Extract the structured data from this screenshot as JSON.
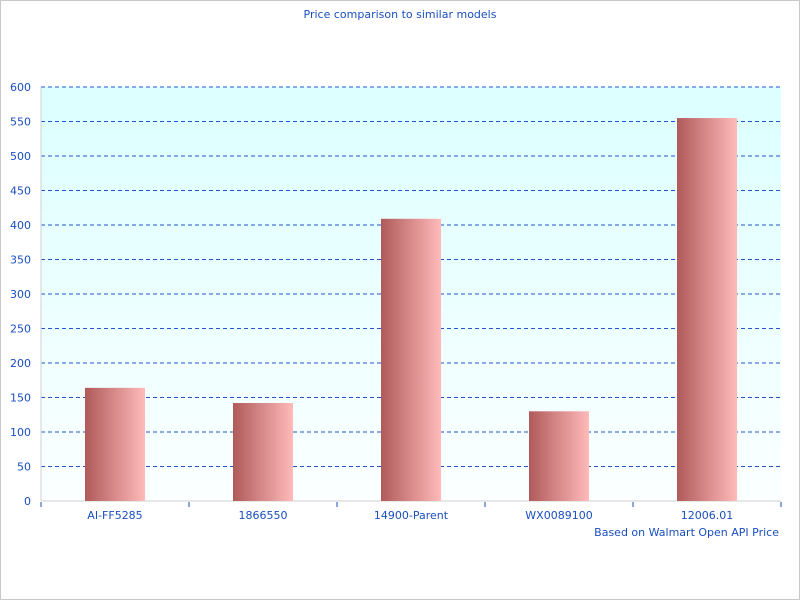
{
  "chart_data": {
    "type": "bar",
    "title": "Price comparison to similar models",
    "xlabel": "Based on Walmart Open API Price",
    "ylabel": "",
    "categories": [
      "AI-FF5285",
      "1866550",
      "14900-Parent",
      "WX0089100",
      "12006.01"
    ],
    "values": [
      164,
      142,
      409,
      130,
      555
    ],
    "ylim": [
      0,
      600
    ],
    "yticks": [
      0,
      50,
      100,
      150,
      200,
      250,
      300,
      350,
      400,
      450,
      500,
      550,
      600
    ],
    "grid": true,
    "legend": "none",
    "colors": {
      "bar_dark": "#b05a5a",
      "bar_light": "#ffbaba",
      "text": "#1a4fc0",
      "grid": "#2255cc",
      "plot_bg_top": "#dcffff",
      "plot_bg_bottom": "#fbffff"
    }
  }
}
